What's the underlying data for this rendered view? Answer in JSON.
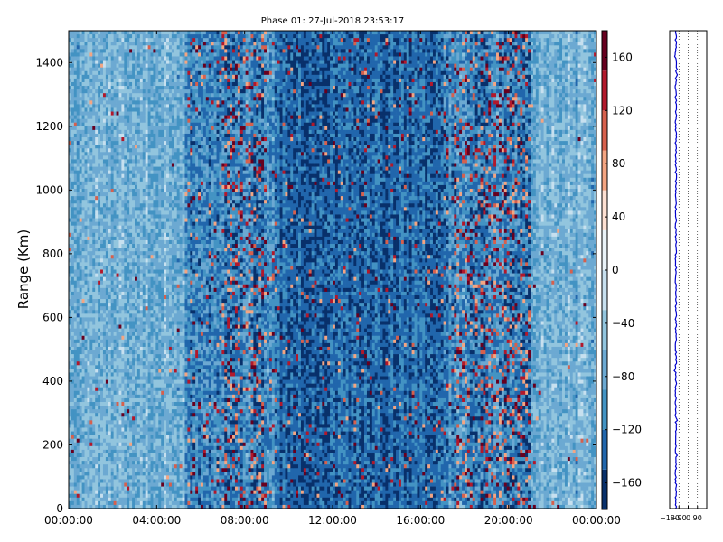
{
  "chart_data": [
    {
      "type": "heatmap",
      "title": "Phase 01: 27-Jul-2018 23:53:17",
      "xlabel": "",
      "ylabel": "Range (Km)",
      "x_ticks": [
        "00:00:00",
        "04:00:00",
        "08:00:00",
        "12:00:00",
        "16:00:00",
        "20:00:00",
        "00:00:00"
      ],
      "x_range_hours": [
        0,
        24
      ],
      "y_ticks": [
        0,
        200,
        400,
        600,
        800,
        1000,
        1200,
        1400
      ],
      "ylim": [
        0,
        1500
      ],
      "colorbar": {
        "ticks": [
          160,
          120,
          80,
          40,
          0,
          -40,
          -80,
          -120,
          -160
        ],
        "range": [
          -180,
          180
        ],
        "colormap": "RdBu_r",
        "levels": 12,
        "colors": [
          "#08306b",
          "#2166ac",
          "#4393c3",
          "#6ca9d2",
          "#92c5de",
          "#c7e0ef",
          "#eaf3f8",
          "#fde0d2",
          "#f4a582",
          "#d6604d",
          "#b2182b",
          "#67001f"
        ]
      },
      "grid": false,
      "description_of_values": {
        "background_phase_deg": -100,
        "noisy_periods_hours": [
          [
            7.0,
            9.0
          ],
          [
            17.5,
            21.0
          ]
        ],
        "dark_period_hours": [
          9.5,
          17.0
        ],
        "light_periods_hours": [
          [
            0,
            5.3
          ],
          [
            21,
            24
          ]
        ]
      }
    },
    {
      "type": "line",
      "title": "",
      "xlabel": "",
      "ylabel": "",
      "x_ticks": [
        "−180",
        "−90",
        "0",
        "90"
      ],
      "xlim": [
        -180,
        180
      ],
      "ylim": [
        0,
        1500
      ],
      "grid": "vertical dotted",
      "series": [
        {
          "name": "",
          "color": "#0000cc",
          "mean_x": -120
        }
      ]
    }
  ]
}
